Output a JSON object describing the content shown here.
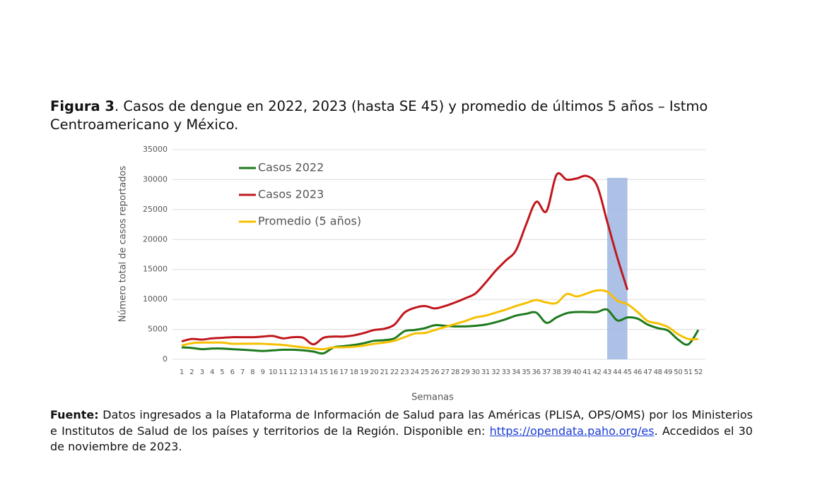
{
  "caption": {
    "label": "Figura 3",
    "text": ". Casos de dengue en 2022, 2023 (hasta SE 45) y promedio de últimos 5 años – Istmo Centroamericano y México."
  },
  "chart_data": {
    "type": "line",
    "xlabel": "Semanas",
    "ylabel": "Número total de casos reportados",
    "categories": [
      "1",
      "2",
      "3",
      "4",
      "5",
      "6",
      "7",
      "8",
      "9",
      "10",
      "11",
      "12",
      "13",
      "14",
      "15",
      "16",
      "17",
      "18",
      "19",
      "20",
      "21",
      "22",
      "23",
      "24",
      "25",
      "26",
      "27",
      "28",
      "29",
      "30",
      "31",
      "32",
      "33",
      "34",
      "35",
      "36",
      "37",
      "38",
      "39",
      "40",
      "41",
      "42",
      "43",
      "44",
      "45",
      "46",
      "47",
      "48",
      "49",
      "50",
      "51",
      "52"
    ],
    "series": [
      {
        "name": "Casos 2022",
        "color": "#1e7a1e",
        "values": [
          2000,
          1900,
          1700,
          1800,
          1800,
          1700,
          1600,
          1500,
          1400,
          1500,
          1600,
          1600,
          1500,
          1300,
          1000,
          2000,
          2200,
          2400,
          2700,
          3100,
          3200,
          3500,
          4700,
          4900,
          5200,
          5700,
          5600,
          5500,
          5500,
          5600,
          5800,
          6200,
          6700,
          7300,
          7600,
          7800,
          6100,
          7000,
          7700,
          7900,
          7900,
          7900,
          8300,
          6500,
          7000,
          6800,
          5800,
          5200,
          4800,
          3300,
          2500,
          4900
        ]
      },
      {
        "name": "Casos 2023",
        "color": "#c0171c",
        "values": [
          3000,
          3400,
          3300,
          3500,
          3600,
          3700,
          3700,
          3700,
          3800,
          3900,
          3500,
          3700,
          3600,
          2500,
          3600,
          3800,
          3800,
          4000,
          4400,
          4900,
          5100,
          5800,
          7800,
          8600,
          8900,
          8500,
          8900,
          9500,
          10200,
          11000,
          12800,
          14800,
          16500,
          18200,
          22500,
          26300,
          24700,
          30800,
          30000,
          30200,
          30600,
          29000,
          23000,
          17000,
          11600,
          null,
          null,
          null,
          null,
          null,
          null,
          null
        ]
      },
      {
        "name": "Promedio (5 años)",
        "color": "#f5c000",
        "values": [
          2300,
          2700,
          2800,
          2800,
          2800,
          2600,
          2600,
          2600,
          2600,
          2500,
          2400,
          2200,
          2000,
          1800,
          1700,
          2000,
          2000,
          2100,
          2300,
          2600,
          2800,
          3100,
          3700,
          4300,
          4400,
          4900,
          5400,
          5900,
          6400,
          7000,
          7300,
          7800,
          8300,
          8900,
          9400,
          9900,
          9500,
          9400,
          10900,
          10500,
          11000,
          11500,
          11300,
          9800,
          9200,
          7900,
          6400,
          6000,
          5400,
          4200,
          3400,
          3400
        ]
      }
    ],
    "ylim": [
      0,
      35000
    ],
    "yticks": [
      0,
      5000,
      10000,
      15000,
      20000,
      25000,
      30000,
      35000
    ],
    "grid": true,
    "legend": "upper left",
    "highlight": {
      "categories": [
        "43",
        "45"
      ],
      "top": 30300,
      "color": "#9fb6e2"
    }
  },
  "source": {
    "label": "Fuente:",
    "text": " Datos ingresados a la Plataforma de Información de Salud para las Américas (PLISA, OPS/OMS) por los Ministerios e Institutos de Salud de los países y territorios de la Región. Disponible en: ",
    "link": "https://opendata.paho.org/es",
    "tail": ". Accedidos el 30 de noviembre de 2023."
  }
}
